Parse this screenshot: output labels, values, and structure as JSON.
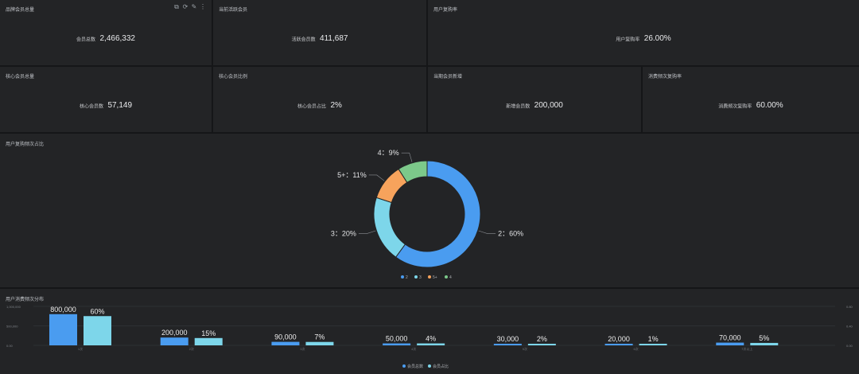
{
  "kpis": [
    {
      "title": "品牌会员总量",
      "label": "会员总数",
      "value": "2,466,332"
    },
    {
      "title": "当前活跃会员",
      "label": "活跃会员数",
      "value": "411,687"
    },
    {
      "title": "用户复购率",
      "label": "用户复购率",
      "value": "26.00%"
    },
    {
      "title": "核心会员总量",
      "label": "核心会员数",
      "value": "57,149"
    },
    {
      "title": "核心会员比例",
      "label": "核心会员占比",
      "value": "2%"
    },
    {
      "title": "当期会员新增",
      "label": "新增会员数",
      "value": "200,000"
    },
    {
      "title": "消费频次复购率",
      "label": "消费频次复购率",
      "value": "60.00%"
    }
  ],
  "toolbar": {
    "icons": [
      "external-link-icon",
      "refresh-icon",
      "edit-icon",
      "more-icon"
    ],
    "glyphs": [
      "⧉",
      "⟳",
      "✎",
      "⋮"
    ]
  },
  "handle_glyph": "≡",
  "colors": {
    "blue": "#4a9cf0",
    "cyan": "#7dd6ea",
    "orange": "#f7a35c",
    "green": "#7cc98a"
  },
  "chart_data": [
    {
      "type": "pie",
      "title": "用户复购频次占比",
      "slices": [
        {
          "label": "2",
          "value": 60,
          "text": "2：60%",
          "color": "#4a9cf0"
        },
        {
          "label": "3",
          "value": 20,
          "text": "3：20%",
          "color": "#7dd6ea"
        },
        {
          "label": "5+",
          "value": 11,
          "text": "5+：11%",
          "color": "#f7a35c"
        },
        {
          "label": "4",
          "value": 9,
          "text": "4：9%",
          "color": "#7cc98a"
        }
      ],
      "legend": [
        "2",
        "3",
        "5+",
        "4"
      ],
      "legend_position": "bottom"
    },
    {
      "type": "bar",
      "title": "用户消费频次分布",
      "categories": [
        "1次",
        "2次",
        "3次",
        "4次",
        "5次",
        "6次",
        "7次以上"
      ],
      "series": [
        {
          "name": "会员总数",
          "values": [
            800000,
            200000,
            90000,
            50000,
            30000,
            20000,
            70000
          ],
          "labels": [
            "800,000",
            "200,000",
            "90,000",
            "50,000",
            "30,000",
            "20,000",
            "70,000"
          ],
          "color": "#4a9cf0",
          "axis": "left"
        },
        {
          "name": "会员占比",
          "values": [
            60,
            15,
            7,
            4,
            2,
            1,
            5
          ],
          "labels": [
            "60%",
            "15%",
            "7%",
            "4%",
            "2%",
            "1%",
            "5%"
          ],
          "color": "#7dd6ea",
          "axis": "right"
        }
      ],
      "left_ticks": [
        "1,000,000",
        "500,000",
        "0.00"
      ],
      "right_ticks": [
        "0.80",
        "0.40",
        "0.00"
      ],
      "ylim": [
        0,
        1000000
      ],
      "y2lim": [
        0,
        80
      ],
      "legend_position": "bottom"
    }
  ]
}
